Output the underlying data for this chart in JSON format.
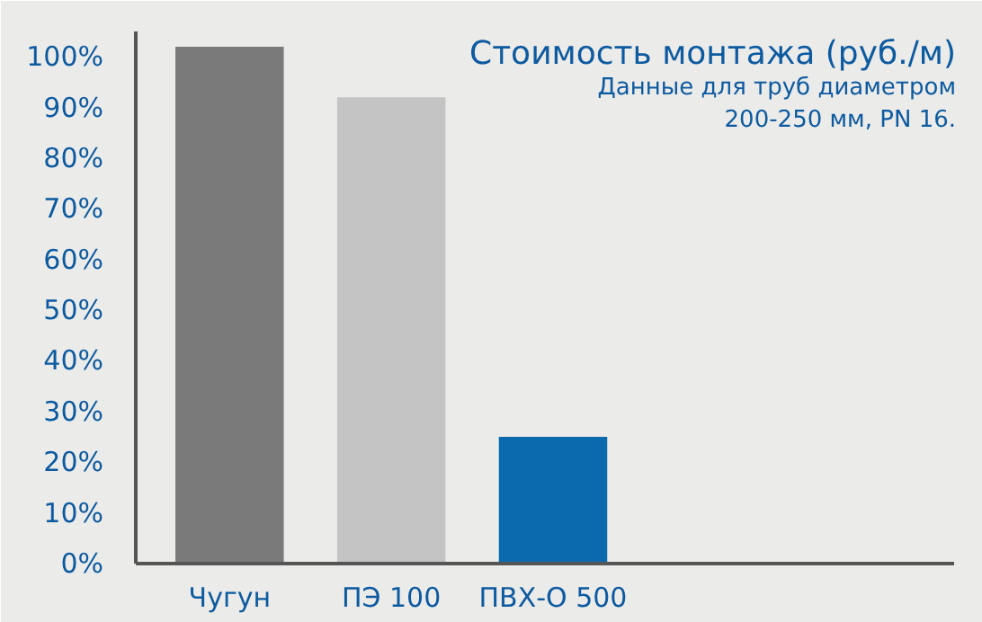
{
  "chart_data": {
    "type": "bar",
    "title": "Стоимость монтажа (руб./м)",
    "subtitle": "Данные для труб диаметром\n200-250 мм, PN 16.",
    "categories": [
      "Чугун",
      "ПЭ 100",
      "ПВХ-О 500"
    ],
    "values": [
      102,
      92,
      25
    ],
    "colors": [
      "#7a7a7a",
      "#c4c4c4",
      "#0a6aad"
    ],
    "ylim": [
      0,
      105
    ],
    "yticks": [
      {
        "value": 0,
        "label": "0%"
      },
      {
        "value": 10,
        "label": "10%"
      },
      {
        "value": 20,
        "label": "20%"
      },
      {
        "value": 30,
        "label": "30%"
      },
      {
        "value": 40,
        "label": "40%"
      },
      {
        "value": 50,
        "label": "50%"
      },
      {
        "value": 60,
        "label": "60%"
      },
      {
        "value": 70,
        "label": "70%"
      },
      {
        "value": 80,
        "label": "80%"
      },
      {
        "value": 90,
        "label": "90%"
      },
      {
        "value": 100,
        "label": "100%"
      }
    ],
    "grid": false
  }
}
